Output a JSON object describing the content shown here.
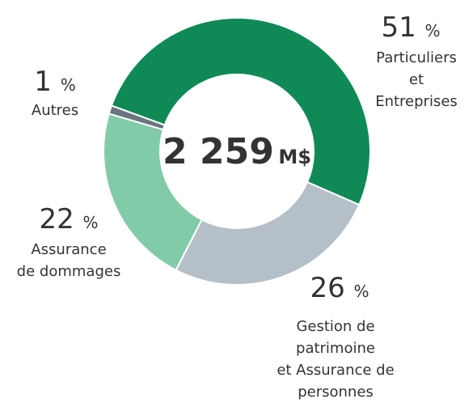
{
  "chart_data": {
    "type": "donut",
    "categories": [
      "Particuliers et\nEntreprises",
      "Gestion de patrimoine\net Assurance de personnes",
      "Assurance\nde dommages",
      "Autres"
    ],
    "values": [
      51,
      26,
      22,
      1
    ],
    "unit": "%",
    "colors": [
      "#0f8a56",
      "#b5bfc8",
      "#82cba9",
      "#6b7580"
    ],
    "total": "2 259",
    "total_unit": "M$"
  }
}
